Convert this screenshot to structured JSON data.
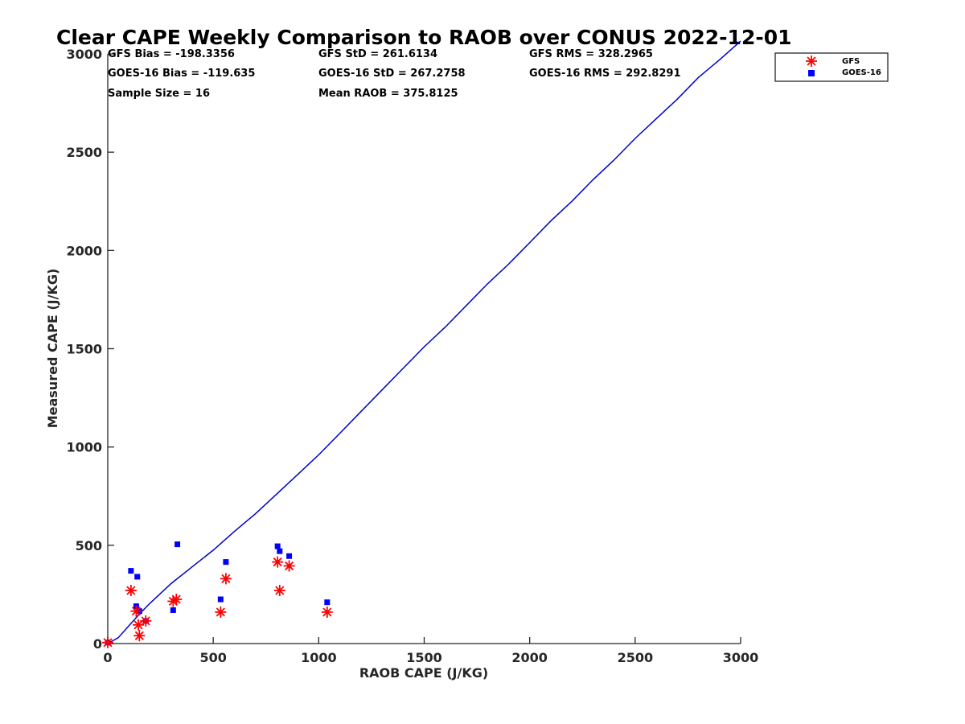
{
  "chart_data": {
    "type": "scatter",
    "title": "Clear CAPE Weekly Comparison to RAOB over CONUS 2022-12-01",
    "xlabel": "RAOB CAPE (J/KG)",
    "ylabel": "Measured CAPE (J/KG)",
    "xlim": [
      0,
      3000
    ],
    "ylim": [
      0,
      3000
    ],
    "xticks": [
      "0",
      "500",
      "1000",
      "1500",
      "2000",
      "2500",
      "3000"
    ],
    "yticks": [
      "0",
      "500",
      "1000",
      "1500",
      "2000",
      "2500",
      "3000"
    ],
    "grid": false,
    "legend_position": "top-right",
    "stats": [
      "GFS Bias = -198.3356",
      "GFS StD = 261.6134",
      "GFS RMS = 328.2965",
      "GOES-16 Bias = -119.635",
      "GOES-16 StD = 267.2758",
      "GOES-16 RMS = 292.8291",
      "Sample Size = 16",
      "Mean RAOB = 375.8125"
    ],
    "series": [
      {
        "name": "GFS",
        "marker": "asterisk",
        "color": "#ff0000",
        "points": [
          [
            0,
            5
          ],
          [
            110,
            270
          ],
          [
            135,
            165
          ],
          [
            145,
            95
          ],
          [
            150,
            40
          ],
          [
            180,
            115
          ],
          [
            310,
            215
          ],
          [
            325,
            225
          ],
          [
            535,
            160
          ],
          [
            560,
            330
          ],
          [
            805,
            415
          ],
          [
            815,
            270
          ],
          [
            860,
            395
          ],
          [
            1040,
            160
          ]
        ]
      },
      {
        "name": "GOES-16",
        "marker": "square",
        "color": "#0000ff",
        "points": [
          [
            0,
            5
          ],
          [
            110,
            370
          ],
          [
            135,
            190
          ],
          [
            140,
            340
          ],
          [
            150,
            165
          ],
          [
            180,
            115
          ],
          [
            310,
            170
          ],
          [
            330,
            505
          ],
          [
            535,
            225
          ],
          [
            560,
            415
          ],
          [
            805,
            495
          ],
          [
            815,
            470
          ],
          [
            860,
            445
          ],
          [
            1040,
            210
          ]
        ]
      },
      {
        "name": "",
        "type": "line",
        "color": "#0000cc",
        "points": [
          [
            0,
            0
          ],
          [
            50,
            30
          ],
          [
            100,
            90
          ],
          [
            150,
            150
          ],
          [
            200,
            205
          ],
          [
            250,
            255
          ],
          [
            300,
            305
          ],
          [
            400,
            390
          ],
          [
            500,
            475
          ],
          [
            600,
            570
          ],
          [
            700,
            660
          ],
          [
            800,
            760
          ],
          [
            900,
            860
          ],
          [
            1000,
            960
          ],
          [
            1100,
            1070
          ],
          [
            1200,
            1180
          ],
          [
            1300,
            1290
          ],
          [
            1400,
            1400
          ],
          [
            1500,
            1510
          ],
          [
            1600,
            1610
          ],
          [
            1700,
            1720
          ],
          [
            1800,
            1830
          ],
          [
            1900,
            1930
          ],
          [
            2000,
            2040
          ],
          [
            2100,
            2150
          ],
          [
            2200,
            2250
          ],
          [
            2300,
            2360
          ],
          [
            2400,
            2460
          ],
          [
            2500,
            2570
          ],
          [
            2600,
            2670
          ],
          [
            2700,
            2770
          ],
          [
            2800,
            2880
          ],
          [
            2900,
            2970
          ],
          [
            3000,
            3065
          ]
        ]
      }
    ]
  }
}
